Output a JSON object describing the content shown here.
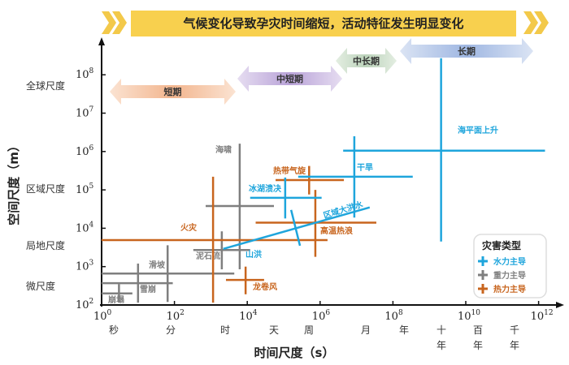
{
  "chart_data": {
    "type": "scatter",
    "title": "气候变化导致孕灾时间缩短，活动特征发生明显变化",
    "xlabel": "时间尺度（s）",
    "ylabel": "空间尺度（m）",
    "x_scale": "log",
    "y_scale": "log",
    "xlim": [
      1,
      1000000000000.0
    ],
    "ylim": [
      100,
      100000000.0
    ],
    "x_ticks": [
      "10^0",
      "10^2",
      "10^4",
      "10^6",
      "10^8",
      "10^10",
      "10^12"
    ],
    "y_ticks": [
      "10^2",
      "10^3",
      "10^4",
      "10^5",
      "10^6",
      "10^7",
      "10^8"
    ],
    "x_tick_exponents": [
      0,
      2,
      4,
      6,
      8,
      10,
      12
    ],
    "y_tick_exponents": [
      2,
      3,
      4,
      5,
      6,
      7,
      8
    ],
    "time_unit_labels": [
      "秒",
      "分",
      "时",
      "天",
      "周",
      "月",
      "年",
      "十年",
      "百年",
      "千年"
    ],
    "space_scale_labels": [
      "全球尺度",
      "区域尺度",
      "局地尺度",
      "微尺度"
    ],
    "periods": [
      "短期",
      "中短期",
      "中长期",
      "长期"
    ],
    "legend": {
      "title": "灾害类型",
      "placement": "bottom-right",
      "items": [
        {
          "label": "水力主导",
          "color": "#1ea5dc"
        },
        {
          "label": "重力主导",
          "color": "#7f7f7f"
        },
        {
          "label": "热力主导",
          "color": "#c8651e"
        }
      ]
    },
    "series": [
      {
        "name": "崩塌",
        "type": "gravity",
        "h": {
          "x": [
            1,
            7
          ],
          "y": 200
        },
        "v": {
          "x": 3,
          "y": [
            115,
            350
          ]
        }
      },
      {
        "name": "雪崩",
        "type": "gravity",
        "h": {
          "x": [
            1,
            90
          ],
          "y": 370
        },
        "v": {
          "x": 10,
          "y": [
            115,
            1200
          ]
        }
      },
      {
        "name": "滑坡",
        "type": "gravity",
        "h": {
          "x": [
            1,
            4400
          ],
          "y": 660
        },
        "v": {
          "x": 65,
          "y": [
            120,
            3600
          ]
        }
      },
      {
        "name": "泥石流",
        "type": "gravity",
        "h": {
          "x": [
            330,
            12000
          ],
          "y": 2700
        },
        "v": {
          "x": 2000,
          "y": [
            850,
            8300
          ]
        }
      },
      {
        "name": "海啸",
        "type": "gravity",
        "h": {
          "x": [
            720,
            54000
          ],
          "y": 38000
        },
        "v": {
          "x": 6200,
          "y": [
            850,
            1600000
          ]
        }
      },
      {
        "name": "火灾",
        "type": "thermal",
        "h": {
          "x": [
            1,
            1600000
          ],
          "y": 4900
        },
        "v": {
          "x": 1150,
          "y": [
            115,
            220000
          ]
        }
      },
      {
        "name": "龙卷风",
        "type": "thermal",
        "h": {
          "x": [
            2600,
            29000
          ],
          "y": 450
        },
        "v": {
          "x": 9000,
          "y": [
            190,
            1000
          ]
        }
      },
      {
        "name": "热带气旋",
        "type": "thermal",
        "h": {
          "x": [
            60000,
            4500000
          ],
          "y": 180000
        },
        "v": {
          "x": 500000,
          "y": [
            76000,
            420000
          ]
        }
      },
      {
        "name": "高温热浪",
        "type": "thermal",
        "h": {
          "x": [
            17000,
            35000000
          ],
          "y": 14000
        },
        "v": {
          "x": 740000,
          "y": [
            1800,
            100000
          ]
        }
      },
      {
        "name": "冰湖溃决",
        "type": "water",
        "h": {
          "x": [
            12000,
            1100000
          ],
          "y": 62000
        },
        "v": {
          "x": 110000,
          "y": [
            18000,
            210000
          ]
        }
      },
      {
        "name": "干旱",
        "type": "water",
        "h": {
          "x": [
            250000,
            350000000
          ],
          "y": 220000
        },
        "v": {
          "x": 8700000,
          "y": [
            19000,
            2500000
          ]
        }
      },
      {
        "name": "海平面上升",
        "type": "water",
        "h": {
          "x": [
            4300000,
            1500000000000
          ],
          "y": 1050000
        },
        "v": {
          "x": 2100000000,
          "y": [
            4500,
            270000000
          ]
        }
      }
    ],
    "flood": {
      "labels": [
        "山洪",
        "区域大洪水"
      ],
      "type": "water",
      "trend": {
        "from": [
          2200,
          2900
        ],
        "to": [
          23000000,
          35000
        ]
      },
      "cross": {
        "from": [
          160000,
          30000
        ],
        "to": [
          280000,
          3500
        ]
      }
    }
  }
}
